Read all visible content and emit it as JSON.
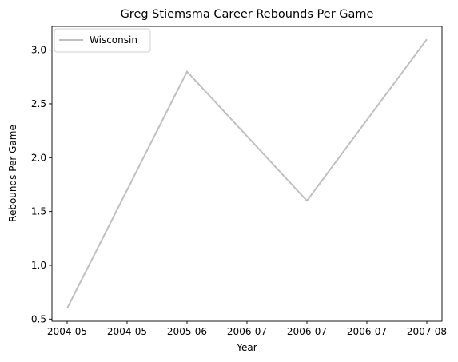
{
  "chart_data": {
    "type": "line",
    "title": "Greg Stiemsma Career Rebounds Per Game",
    "xlabel": "Year",
    "ylabel": "Rebounds Per Game",
    "x_tick_labels": [
      "2004-05",
      "2004-05",
      "2005-06",
      "2006-07",
      "2006-07",
      "2006-07",
      "2007-08"
    ],
    "x": [
      "2004-05",
      "2005-06",
      "2006-07",
      "2007-08"
    ],
    "series": [
      {
        "name": "Wisconsin",
        "values": [
          0.6,
          2.8,
          1.6,
          3.1
        ],
        "color": "#bfbfbf"
      }
    ],
    "ylim": [
      0.48,
      3.22
    ],
    "y_ticks": [
      0.5,
      1.0,
      1.5,
      2.0,
      2.5,
      3.0
    ],
    "grid": false,
    "legend_position": "top-left"
  }
}
